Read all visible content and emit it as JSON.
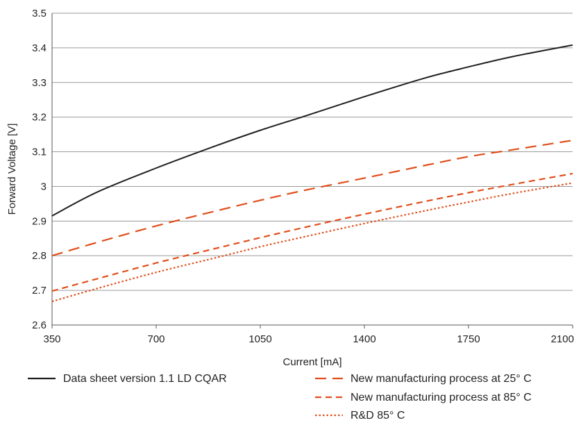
{
  "chart_data": {
    "type": "line",
    "title": "",
    "xlabel": "Current [mA]",
    "ylabel": "Forward Voltage [V]",
    "xlim": [
      350,
      2100
    ],
    "ylim": [
      2.6,
      3.5
    ],
    "x_ticks": [
      "350",
      "700",
      "1050",
      "1400",
      "1750",
      "2100"
    ],
    "y_ticks": [
      "2.6",
      "2.7",
      "2.8",
      "2.9",
      "3",
      "3.1",
      "3.2",
      "3.3",
      "3.4",
      "3.5"
    ],
    "grid": "horizontal",
    "legend_placement": "bottom",
    "series": [
      {
        "name": "Data sheet version 1.1 LD CQAR",
        "style": "solid",
        "color": "#1f1f1f",
        "x": [
          350,
          500,
          700,
          900,
          1050,
          1200,
          1400,
          1600,
          1750,
          1900,
          2100
        ],
        "y": [
          2.915,
          2.983,
          3.053,
          3.117,
          3.162,
          3.203,
          3.259,
          3.312,
          3.345,
          3.375,
          3.408
        ]
      },
      {
        "name": "New manufacturing process at 25° C",
        "style": "longdash",
        "color": "#e04e1b",
        "x": [
          350,
          500,
          700,
          900,
          1050,
          1200,
          1400,
          1600,
          1750,
          1900,
          2100
        ],
        "y": [
          2.8,
          2.838,
          2.886,
          2.929,
          2.96,
          2.989,
          3.024,
          3.06,
          3.086,
          3.106,
          3.133
        ]
      },
      {
        "name": "New manufacturing process at 85° C",
        "style": "dash",
        "color": "#e04e1b",
        "x": [
          350,
          500,
          700,
          900,
          1050,
          1200,
          1400,
          1600,
          1750,
          1900,
          2100
        ],
        "y": [
          2.698,
          2.733,
          2.779,
          2.821,
          2.852,
          2.882,
          2.92,
          2.956,
          2.982,
          3.006,
          3.037
        ]
      },
      {
        "name": "R&D 85° C",
        "style": "dot",
        "color": "#e04e1b",
        "x": [
          350,
          500,
          700,
          900,
          1050,
          1200,
          1400,
          1600,
          1750,
          1900,
          2100
        ],
        "y": [
          2.668,
          2.705,
          2.752,
          2.794,
          2.826,
          2.855,
          2.893,
          2.929,
          2.955,
          2.98,
          3.01
        ]
      }
    ]
  }
}
